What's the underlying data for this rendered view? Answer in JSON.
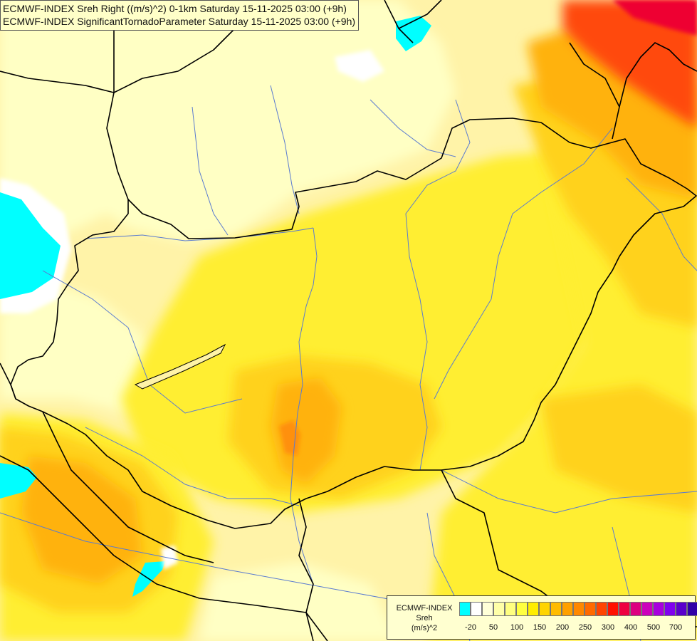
{
  "header": {
    "line1": "ECMWF-INDEX Sreh Right ((m/s)^2) 0-1km Saturday 15-11-2025 03:00 (+9h)",
    "line2": "ECMWF-INDEX SignificantTornadoParameter Saturday 15-11-2025 03:00 (+9h)"
  },
  "legend": {
    "source": "ECMWF-INDEX",
    "variable": "Sreh",
    "unit": "(m/s)^2",
    "colors": [
      "#00ffff",
      "#ffffff",
      "#ffffd8",
      "#ffffa8",
      "#ffff80",
      "#ffff40",
      "#ffee00",
      "#ffd400",
      "#ffbb00",
      "#ffa000",
      "#ff8800",
      "#ff6a00",
      "#ff4400",
      "#ff1000",
      "#ee0040",
      "#dd0080",
      "#cc00bb",
      "#a800dd",
      "#8000ee",
      "#5a00cc",
      "#3000a8",
      "#000080"
    ],
    "ticks": [
      "-20",
      "50",
      "100",
      "150",
      "200",
      "250",
      "300",
      "400",
      "500",
      "700"
    ]
  },
  "map": {
    "colors": {
      "base": "#fff3a8",
      "pale": "#ffffc4",
      "yellow": "#ffee33",
      "gold": "#ffd21a",
      "orange": "#ffb20f",
      "deep_orange": "#ff9010",
      "red": "#ff4a0a",
      "crimson": "#ee0030",
      "cyan": "#00ffff",
      "white": "#ffffff",
      "border": "#000000",
      "river": "#5a7bd0"
    }
  }
}
